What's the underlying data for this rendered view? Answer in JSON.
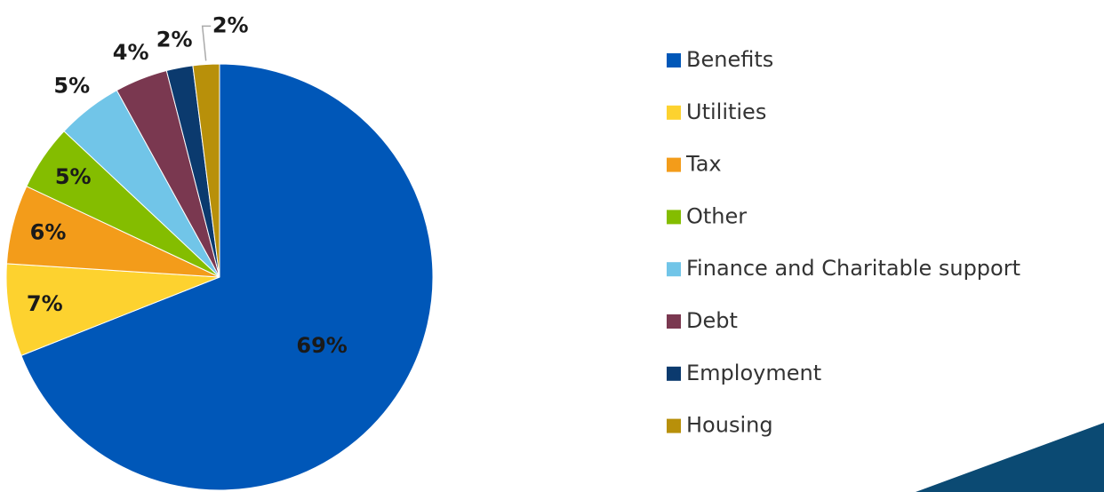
{
  "chart_data": {
    "type": "pie",
    "categories": [
      "Benefits",
      "Utilities",
      "Tax",
      "Other",
      "Finance and Charitable support",
      "Debt",
      "Employment",
      "Housing"
    ],
    "values": [
      69,
      7,
      6,
      5,
      5,
      4,
      2,
      2
    ],
    "value_labels": [
      "69%",
      "7%",
      "6%",
      "5%",
      "5%",
      "4%",
      "2%",
      "2%"
    ],
    "colors": [
      "#0057b8",
      "#fdd22f",
      "#f39c1a",
      "#84bd00",
      "#71c5e8",
      "#7a3850",
      "#0b3a6e",
      "#b8900a"
    ],
    "legend": "right"
  }
}
